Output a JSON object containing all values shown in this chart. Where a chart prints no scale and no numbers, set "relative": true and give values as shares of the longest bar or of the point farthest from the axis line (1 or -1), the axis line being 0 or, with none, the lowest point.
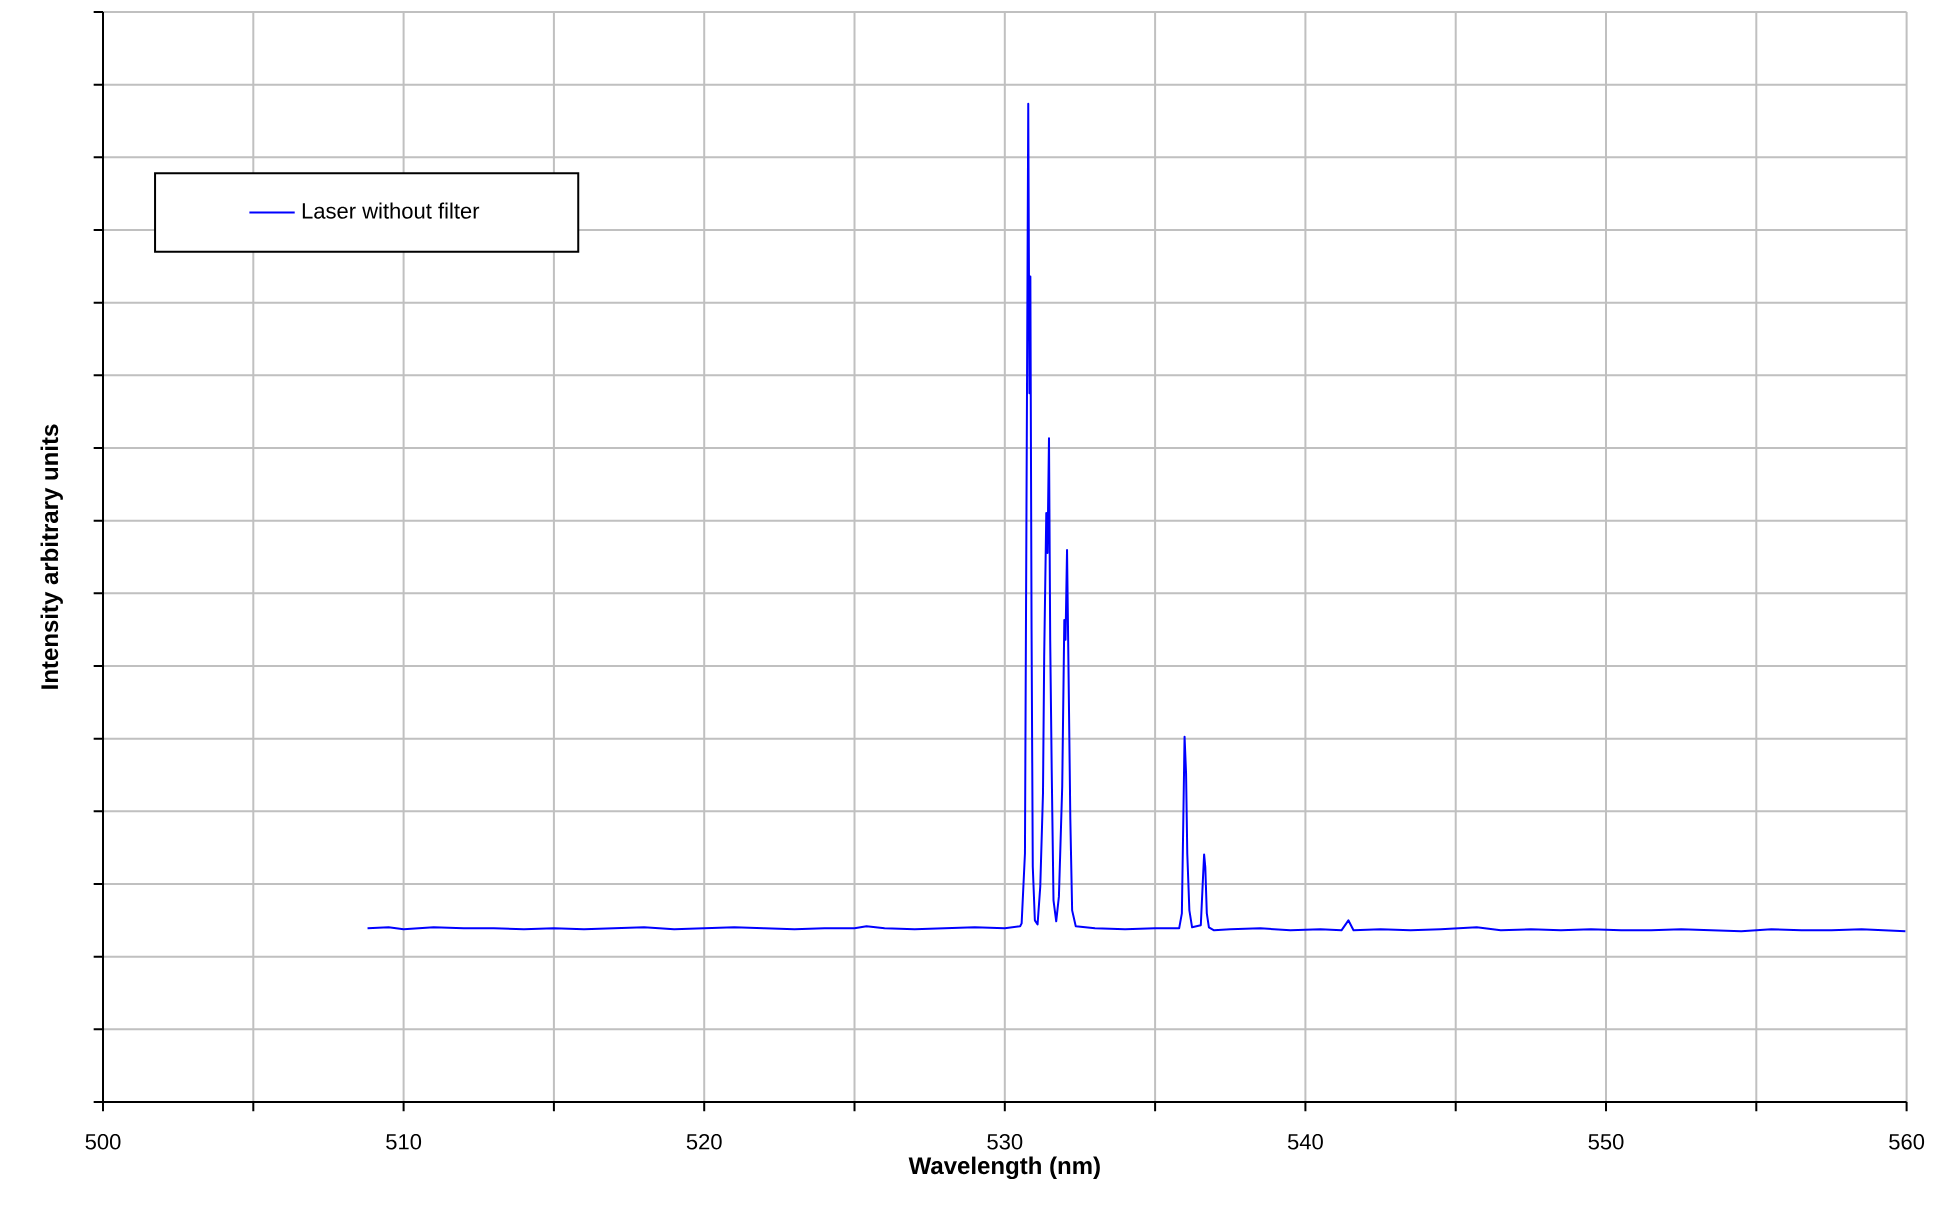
{
  "chart_data": {
    "type": "line",
    "xlabel": "Wavelength (nm)",
    "ylabel": "Intensity arbitrary units",
    "relative": true,
    "xlim": [
      500,
      560
    ],
    "xticks": [
      500,
      {
        "value": 505,
        "label": null
      },
      510,
      {
        "value": 515,
        "label": null
      },
      520,
      {
        "value": 525,
        "label": null
      },
      530,
      {
        "value": 535,
        "label": null
      },
      540,
      {
        "value": 545,
        "label": null
      },
      550,
      {
        "value": 555,
        "label": null
      },
      560
    ],
    "grid": true,
    "legend": "top left",
    "series": [
      {
        "name": "Laser without filter",
        "color": "#0000ff",
        "x": [
          508.8,
          509.5,
          510,
          511,
          512,
          513,
          514,
          515,
          516,
          517,
          518,
          519,
          520,
          521,
          522,
          523,
          524,
          525,
          525.4,
          526,
          527,
          528,
          529,
          530,
          530.51,
          530.56,
          530.67,
          530.73,
          530.78,
          530.82,
          530.85,
          530.89,
          530.93,
          531.0,
          531.09,
          531.18,
          531.27,
          531.31,
          531.38,
          531.42,
          531.47,
          531.51,
          531.56,
          531.62,
          531.71,
          531.8,
          531.91,
          531.98,
          532.02,
          532.07,
          532.11,
          532.18,
          532.24,
          532.36,
          533,
          534,
          535,
          535.8,
          535.89,
          535.94,
          535.98,
          536.03,
          536.07,
          536.14,
          536.23,
          536.52,
          536.58,
          536.63,
          536.67,
          536.72,
          536.79,
          536.96,
          537.5,
          538.5,
          539.5,
          540.5,
          541.2,
          541.43,
          541.6,
          542.5,
          543.5,
          544.5,
          545.7,
          546.5,
          547.5,
          548.5,
          549.5,
          550.5,
          551.5,
          552.5,
          553.5,
          554.5,
          555.5,
          556.5,
          557.5,
          558.5,
          559.96
        ],
        "values": [
          0.174,
          0.175,
          0.173,
          0.175,
          0.174,
          0.174,
          0.173,
          0.174,
          0.173,
          0.174,
          0.175,
          0.173,
          0.174,
          0.175,
          0.174,
          0.173,
          0.174,
          0.174,
          0.176,
          0.174,
          0.173,
          0.174,
          0.175,
          0.174,
          0.176,
          0.179,
          0.249,
          0.657,
          1.0,
          0.71,
          0.827,
          0.473,
          0.236,
          0.182,
          0.178,
          0.216,
          0.309,
          0.446,
          0.59,
          0.55,
          0.665,
          0.463,
          0.333,
          0.202,
          0.181,
          0.206,
          0.316,
          0.483,
          0.463,
          0.553,
          0.456,
          0.283,
          0.192,
          0.176,
          0.174,
          0.173,
          0.174,
          0.174,
          0.189,
          0.286,
          0.366,
          0.329,
          0.249,
          0.192,
          0.175,
          0.177,
          0.216,
          0.248,
          0.235,
          0.189,
          0.175,
          0.172,
          0.173,
          0.174,
          0.172,
          0.173,
          0.172,
          0.182,
          0.172,
          0.173,
          0.172,
          0.173,
          0.175,
          0.172,
          0.173,
          0.172,
          0.173,
          0.172,
          0.172,
          0.173,
          0.172,
          0.171,
          0.173,
          0.172,
          0.172,
          0.173,
          0.171
        ]
      }
    ]
  }
}
